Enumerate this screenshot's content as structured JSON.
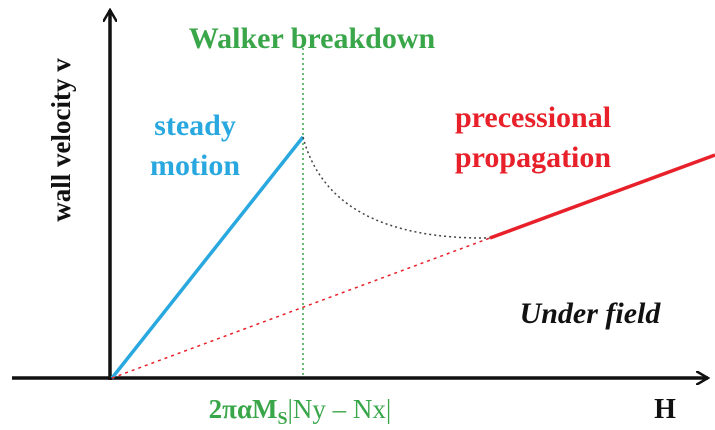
{
  "y_axis_label": "wall velocity v",
  "x_axis_label": "H",
  "title": "Walker breakdown",
  "steady_label": [
    "steady",
    "motion"
  ],
  "precessional_label": [
    "precessional",
    "propagation"
  ],
  "annotation": "Under field",
  "threshold_label": {
    "prefix": "2παM",
    "subscript": "S",
    "suffix": "|Ny – Nx|"
  }
}
